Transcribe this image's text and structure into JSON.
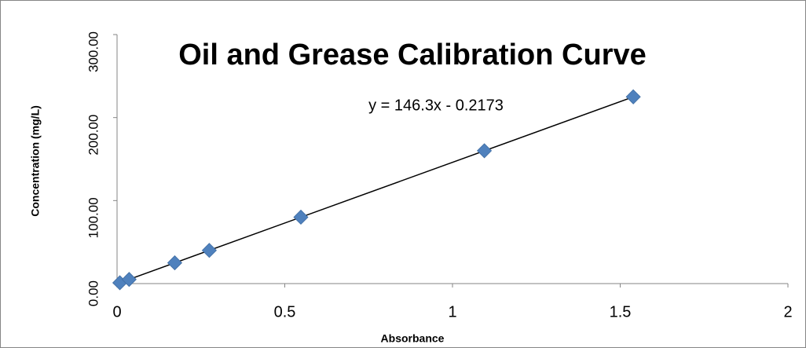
{
  "chart_data": {
    "type": "scatter",
    "title": "Oil and Grease Calibration Curve",
    "x_label": "Absorbance",
    "y_label": "Concentration (mg/L)",
    "series": [
      {
        "color": "#4f81bd",
        "x": [
          0.0083,
          0.036,
          0.172,
          0.275,
          0.548,
          1.095,
          1.539
        ],
        "values": [
          1,
          5,
          25,
          40,
          80,
          160,
          225
        ]
      }
    ],
    "trendline": {
      "slope": 146.3,
      "intercept": -0.2173,
      "label": "y = 146.3x - 0.2173",
      "color": "#000000"
    },
    "xlim": [
      0,
      2
    ],
    "xticks": [
      0,
      0.5,
      1,
      1.5,
      2
    ],
    "ylim": [
      0,
      300
    ],
    "yticks": [
      {
        "value": 0,
        "label": "0.00"
      },
      {
        "value": 100,
        "label": "100.00"
      },
      {
        "value": 200,
        "label": "200.00"
      },
      {
        "value": 300,
        "label": "300.00"
      }
    ],
    "grid": false
  }
}
